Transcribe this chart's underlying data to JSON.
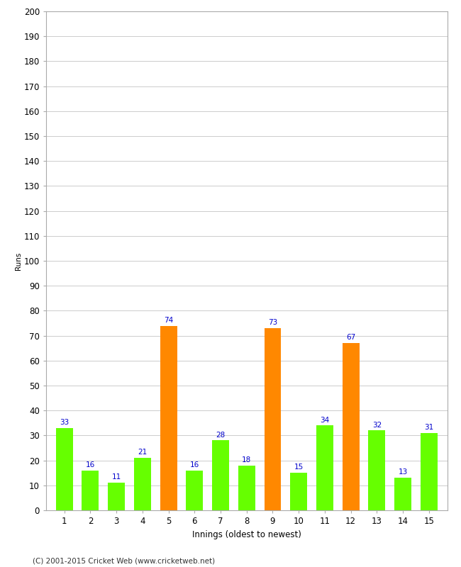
{
  "xlabel": "Innings (oldest to newest)",
  "ylabel": "Runs",
  "categories": [
    1,
    2,
    3,
    4,
    5,
    6,
    7,
    8,
    9,
    10,
    11,
    12,
    13,
    14,
    15
  ],
  "values": [
    33,
    16,
    11,
    21,
    74,
    16,
    28,
    18,
    73,
    15,
    34,
    67,
    32,
    13,
    31
  ],
  "colors": [
    "#66ff00",
    "#66ff00",
    "#66ff00",
    "#66ff00",
    "#ff8800",
    "#66ff00",
    "#66ff00",
    "#66ff00",
    "#ff8800",
    "#66ff00",
    "#66ff00",
    "#ff8800",
    "#66ff00",
    "#66ff00",
    "#66ff00"
  ],
  "ylim": [
    0,
    200
  ],
  "yticks": [
    0,
    10,
    20,
    30,
    40,
    50,
    60,
    70,
    80,
    90,
    100,
    110,
    120,
    130,
    140,
    150,
    160,
    170,
    180,
    190,
    200
  ],
  "label_color": "#0000cc",
  "label_fontsize": 7.5,
  "axis_fontsize": 8.5,
  "ylabel_fontsize": 7.5,
  "footer": "(C) 2001-2015 Cricket Web (www.cricketweb.net)",
  "footer_fontsize": 7.5,
  "background_color": "#ffffff",
  "grid_color": "#cccccc",
  "bar_width": 0.65,
  "border_color": "#aaaaaa"
}
